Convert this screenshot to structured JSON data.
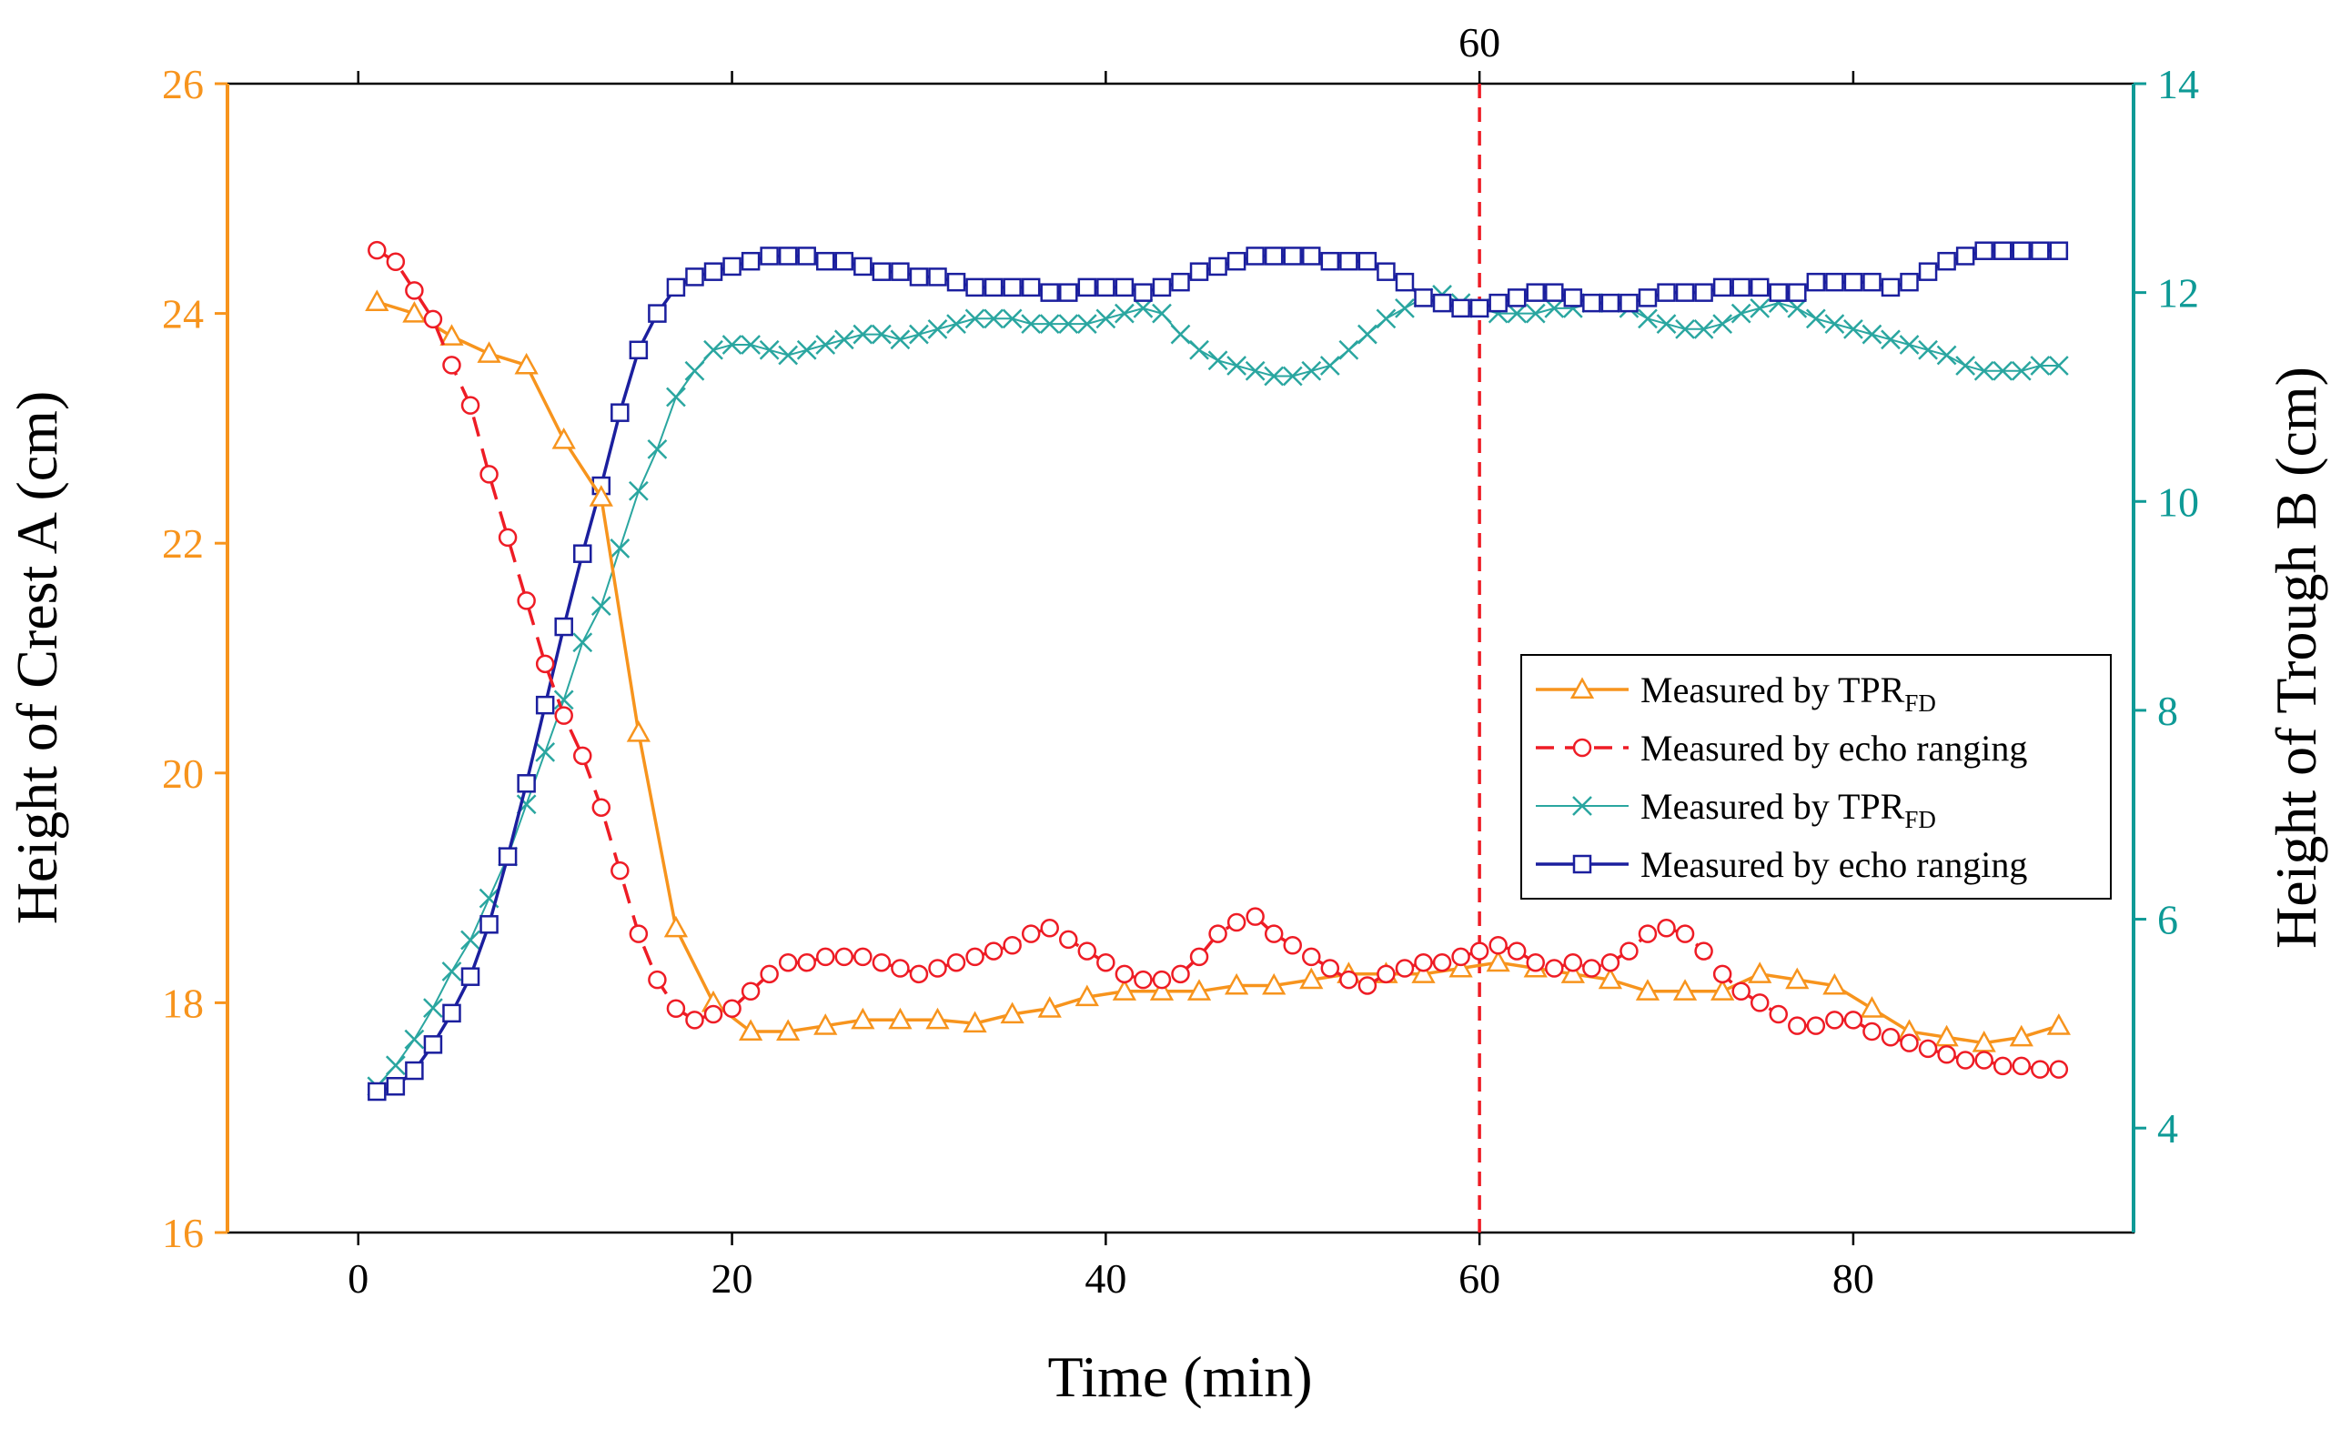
{
  "chart_data": {
    "type": "line",
    "title": "",
    "xlabel": "Time (min)",
    "ylabel_left": "Height of Crest A (cm)",
    "ylabel_right": "Height of Trough B (cm)",
    "xlim": [
      -7,
      95
    ],
    "ylim_left": [
      16,
      26
    ],
    "ylim_right": [
      3,
      14
    ],
    "xticks": [
      0,
      20,
      40,
      60,
      80
    ],
    "xtick_labels": [
      "0",
      "20",
      "40",
      "60",
      "80"
    ],
    "yticks_left": [
      16,
      18,
      20,
      22,
      24,
      26
    ],
    "ytick_labels_left": [
      "16",
      "18",
      "20",
      "22",
      "24",
      "26"
    ],
    "yticks_right": [
      4,
      6,
      8,
      10,
      12,
      14
    ],
    "ytick_labels_right": [
      "4",
      "6",
      "8",
      "10",
      "12",
      "14"
    ],
    "grid": false,
    "legend_position": "right",
    "annotations": [
      {
        "type": "vline",
        "x": 60,
        "label": "60",
        "color": "#ee1c25",
        "style": "dashed"
      }
    ],
    "colors": {
      "left_axis": "#f7941d",
      "right_axis": "#0e9a96",
      "tpr_crest": "#f7941d",
      "echo_crest": "#ee1c25",
      "tpr_trough": "#2aa6a0",
      "echo_trough": "#1b1f9e",
      "frame": "#000000"
    },
    "series": [
      {
        "name": "Measured by TPR",
        "subscript": "FD",
        "axis": "left",
        "marker": "triangle",
        "line": "solid",
        "color": "#f7941d",
        "x": [
          1,
          3,
          5,
          7,
          9,
          11,
          13,
          15,
          17,
          19,
          21,
          23,
          25,
          27,
          29,
          31,
          33,
          35,
          37,
          39,
          41,
          43,
          45,
          47,
          49,
          51,
          53,
          55,
          57,
          59,
          61,
          63,
          65,
          67,
          69,
          71,
          73,
          75,
          77,
          79,
          81,
          83,
          85,
          87,
          89,
          91
        ],
        "values": [
          24.1,
          24.0,
          23.8,
          23.65,
          23.55,
          22.9,
          22.4,
          20.35,
          18.65,
          18.0,
          17.75,
          17.75,
          17.8,
          17.85,
          17.85,
          17.85,
          17.82,
          17.9,
          17.95,
          18.05,
          18.1,
          18.1,
          18.1,
          18.15,
          18.15,
          18.2,
          18.25,
          18.25,
          18.25,
          18.3,
          18.35,
          18.3,
          18.25,
          18.2,
          18.1,
          18.1,
          18.1,
          18.25,
          18.2,
          18.15,
          17.95,
          17.75,
          17.7,
          17.65,
          17.7,
          17.8
        ]
      },
      {
        "name": "Measured by echo ranging",
        "axis": "left",
        "marker": "circle",
        "line": "dashed",
        "color": "#ee1c25",
        "x": [
          1,
          2,
          3,
          4,
          5,
          6,
          7,
          8,
          9,
          10,
          11,
          12,
          13,
          14,
          15,
          16,
          17,
          18,
          19,
          20,
          21,
          22,
          23,
          24,
          25,
          26,
          27,
          28,
          29,
          30,
          31,
          32,
          33,
          34,
          35,
          36,
          37,
          38,
          39,
          40,
          41,
          42,
          43,
          44,
          45,
          46,
          47,
          48,
          49,
          50,
          51,
          52,
          53,
          54,
          55,
          56,
          57,
          58,
          59,
          60,
          61,
          62,
          63,
          64,
          65,
          66,
          67,
          68,
          69,
          70,
          71,
          72,
          73,
          74,
          75,
          76,
          77,
          78,
          79,
          80,
          81,
          82,
          83,
          84,
          85,
          86,
          87,
          88,
          89,
          90,
          91
        ],
        "values": [
          24.55,
          24.45,
          24.2,
          23.95,
          23.55,
          23.2,
          22.6,
          22.05,
          21.5,
          20.95,
          20.5,
          20.15,
          19.7,
          19.15,
          18.6,
          18.2,
          17.95,
          17.85,
          17.9,
          17.95,
          18.1,
          18.25,
          18.35,
          18.35,
          18.4,
          18.4,
          18.4,
          18.35,
          18.3,
          18.25,
          18.3,
          18.35,
          18.4,
          18.45,
          18.5,
          18.6,
          18.65,
          18.55,
          18.45,
          18.35,
          18.25,
          18.2,
          18.2,
          18.25,
          18.4,
          18.6,
          18.7,
          18.75,
          18.6,
          18.5,
          18.4,
          18.3,
          18.2,
          18.15,
          18.25,
          18.3,
          18.35,
          18.35,
          18.4,
          18.45,
          18.5,
          18.45,
          18.35,
          18.3,
          18.35,
          18.3,
          18.35,
          18.45,
          18.6,
          18.65,
          18.6,
          18.45,
          18.25,
          18.1,
          18.0,
          17.9,
          17.8,
          17.8,
          17.85,
          17.85,
          17.75,
          17.7,
          17.65,
          17.6,
          17.55,
          17.5,
          17.5,
          17.45,
          17.45,
          17.42,
          17.42
        ]
      },
      {
        "name": "Measured by TPR",
        "subscript": "FD",
        "axis": "right",
        "marker": "x",
        "line": "solid",
        "color": "#2aa6a0",
        "x": [
          1,
          2,
          3,
          4,
          5,
          6,
          7,
          8,
          9,
          10,
          11,
          12,
          13,
          14,
          15,
          16,
          17,
          18,
          19,
          20,
          21,
          22,
          23,
          24,
          25,
          26,
          27,
          28,
          29,
          30,
          31,
          32,
          33,
          34,
          35,
          36,
          37,
          38,
          39,
          40,
          41,
          42,
          43,
          44,
          45,
          46,
          47,
          48,
          49,
          50,
          51,
          52,
          53,
          54,
          55,
          56,
          57,
          58,
          59,
          60,
          61,
          62,
          63,
          64,
          65,
          66,
          67,
          68,
          69,
          70,
          71,
          72,
          73,
          74,
          75,
          76,
          77,
          78,
          79,
          80,
          81,
          82,
          83,
          84,
          85,
          86,
          87,
          88,
          89,
          90,
          91
        ],
        "values": [
          4.4,
          4.6,
          4.85,
          5.15,
          5.5,
          5.8,
          6.2,
          6.6,
          7.1,
          7.6,
          8.1,
          8.65,
          9.0,
          9.55,
          10.1,
          10.5,
          11.0,
          11.25,
          11.45,
          11.5,
          11.5,
          11.45,
          11.4,
          11.45,
          11.5,
          11.55,
          11.6,
          11.6,
          11.55,
          11.6,
          11.65,
          11.7,
          11.75,
          11.75,
          11.75,
          11.7,
          11.7,
          11.7,
          11.7,
          11.75,
          11.8,
          11.85,
          11.8,
          11.6,
          11.45,
          11.35,
          11.3,
          11.25,
          11.2,
          11.2,
          11.25,
          11.3,
          11.45,
          11.6,
          11.75,
          11.85,
          11.95,
          11.98,
          11.9,
          11.85,
          11.8,
          11.8,
          11.8,
          11.85,
          11.85,
          11.9,
          11.9,
          11.85,
          11.75,
          11.7,
          11.65,
          11.65,
          11.7,
          11.8,
          11.85,
          11.9,
          11.85,
          11.75,
          11.7,
          11.65,
          11.6,
          11.55,
          11.5,
          11.45,
          11.4,
          11.3,
          11.25,
          11.25,
          11.25,
          11.3,
          11.3
        ]
      },
      {
        "name": "Measured by echo ranging",
        "axis": "right",
        "marker": "square",
        "line": "solid",
        "color": "#1b1f9e",
        "x": [
          1,
          2,
          3,
          4,
          5,
          6,
          7,
          8,
          9,
          10,
          11,
          12,
          13,
          14,
          15,
          16,
          17,
          18,
          19,
          20,
          21,
          22,
          23,
          24,
          25,
          26,
          27,
          28,
          29,
          30,
          31,
          32,
          33,
          34,
          35,
          36,
          37,
          38,
          39,
          40,
          41,
          42,
          43,
          44,
          45,
          46,
          47,
          48,
          49,
          50,
          51,
          52,
          53,
          54,
          55,
          56,
          57,
          58,
          59,
          60,
          61,
          62,
          63,
          64,
          65,
          66,
          67,
          68,
          69,
          70,
          71,
          72,
          73,
          74,
          75,
          76,
          77,
          78,
          79,
          80,
          81,
          82,
          83,
          84,
          85,
          86,
          87,
          88,
          89,
          90,
          91
        ],
        "values": [
          4.35,
          4.4,
          4.55,
          4.8,
          5.1,
          5.45,
          5.95,
          6.6,
          7.3,
          8.05,
          8.8,
          9.5,
          10.15,
          10.85,
          11.45,
          11.8,
          12.05,
          12.15,
          12.2,
          12.25,
          12.3,
          12.35,
          12.35,
          12.35,
          12.3,
          12.3,
          12.25,
          12.2,
          12.2,
          12.15,
          12.15,
          12.1,
          12.05,
          12.05,
          12.05,
          12.05,
          12.0,
          12.0,
          12.05,
          12.05,
          12.05,
          12.0,
          12.05,
          12.1,
          12.2,
          12.25,
          12.3,
          12.35,
          12.35,
          12.35,
          12.35,
          12.3,
          12.3,
          12.3,
          12.2,
          12.1,
          11.95,
          11.9,
          11.85,
          11.85,
          11.9,
          11.95,
          12.0,
          12.0,
          11.95,
          11.9,
          11.9,
          11.9,
          11.95,
          12.0,
          12.0,
          12.0,
          12.05,
          12.05,
          12.05,
          12.0,
          12.0,
          12.1,
          12.1,
          12.1,
          12.1,
          12.05,
          12.1,
          12.2,
          12.3,
          12.35,
          12.4,
          12.4,
          12.4,
          12.4,
          12.4
        ]
      }
    ]
  }
}
